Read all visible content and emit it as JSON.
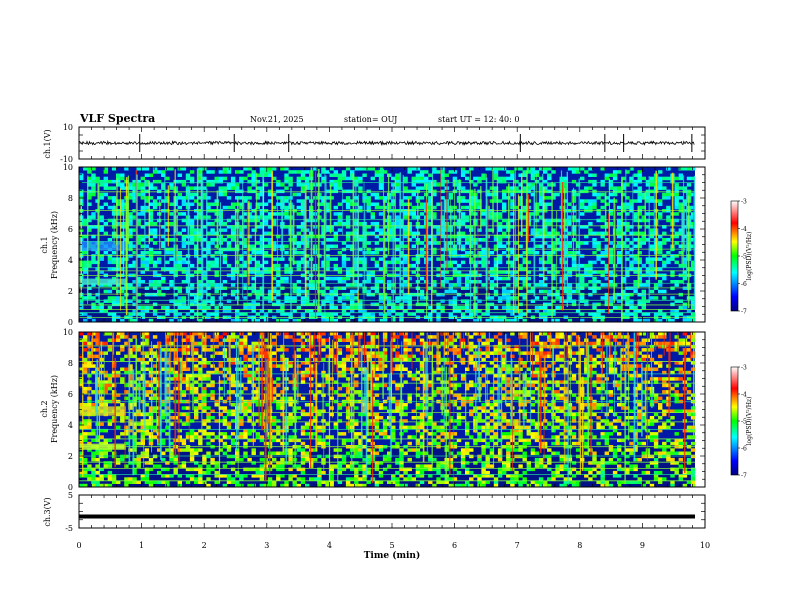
{
  "header": {
    "title": "VLF Spectra",
    "date": "Nov.21, 2025",
    "station": "station= OUJ",
    "start_time": "start  UT =   12: 40: 0"
  },
  "chart_data": [
    {
      "type": "line",
      "name": "ch1-waveform",
      "ylabel": "ch.1(V)",
      "ylim": [
        -10,
        10
      ],
      "yticks": [
        "10",
        "-10"
      ],
      "baseline": 0,
      "spikes_min": [
        0.97,
        2.48,
        3.35,
        7.05,
        8.4,
        8.7,
        9.79
      ]
    },
    {
      "type": "heatmap",
      "name": "ch1-spectrogram",
      "ylabel_channel": "ch.1",
      "ylabel": "Frequency  (kHz)",
      "ylim": [
        0,
        10
      ],
      "yticks": [
        "0",
        "2",
        "4",
        "6",
        "8",
        "10"
      ],
      "horizontal_lines_khz": [
        0.3,
        0.6,
        0.8,
        1.1,
        1.4,
        1.8,
        2.2,
        2.5,
        3.0,
        3.3,
        3.5,
        4.3,
        4.7,
        5.2,
        5.6,
        6.2,
        6.6,
        7.2,
        8.4,
        9.0
      ],
      "bright_band_khz": [
        2.4,
        2.8
      ],
      "data_end_min": 9.84,
      "colorbar": {
        "label": "log(PSD)(V²/Hz)",
        "ticks": [
          "-3",
          "-4",
          "-5",
          "-6",
          "-7"
        ]
      }
    },
    {
      "type": "heatmap",
      "name": "ch2-spectrogram",
      "ylabel_channel": "ch.2",
      "ylabel": "Frequency  (kHz)",
      "ylim": [
        0,
        10
      ],
      "yticks": [
        "0",
        "2",
        "4",
        "6",
        "8",
        "10"
      ],
      "horizontal_lines_khz": [
        0.4,
        0.8,
        1.2,
        1.6,
        2.0,
        2.6,
        3.1,
        3.7,
        4.2,
        4.8,
        5.5,
        6.0,
        6.7,
        7.3,
        8.1,
        9.1
      ],
      "bright_band_khz": [
        2.4,
        2.8
      ],
      "data_end_min": 9.84,
      "colorbar": {
        "label": "log(PSD)(V²/Hz)",
        "ticks": [
          "-3",
          "-4",
          "-5",
          "-6",
          "-7"
        ]
      }
    },
    {
      "type": "line",
      "name": "ch3-waveform",
      "ylabel": "ch.3(V)",
      "ylim": [
        -5,
        5
      ],
      "yticks": [
        "5",
        "-5"
      ],
      "value": -1.5
    }
  ],
  "xaxis": {
    "label": "Time  (min)",
    "xlim": [
      0,
      10
    ],
    "ticks": [
      "0",
      "1",
      "2",
      "3",
      "4",
      "5",
      "6",
      "7",
      "8",
      "9",
      "10"
    ]
  },
  "colors": {
    "spectrum_low": "#00007f",
    "spectrum_mid": "#00ffff",
    "spectrum_high": "#ff0000",
    "line": "#000000"
  }
}
